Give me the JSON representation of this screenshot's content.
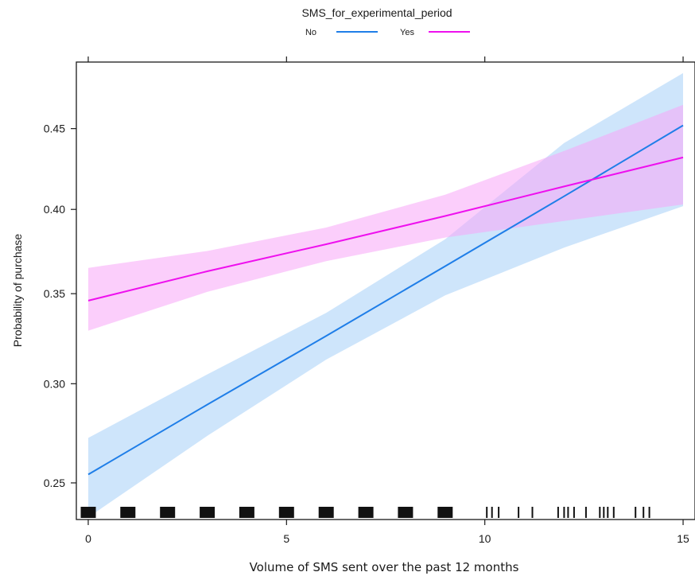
{
  "chart_data": {
    "type": "line",
    "title": "",
    "legend": {
      "title": "SMS_for_experimental_period",
      "placement": "top",
      "entries": [
        {
          "label": "No",
          "color": "#1f7ee8"
        },
        {
          "label": "Yes",
          "color": "#ee10ee"
        }
      ]
    },
    "xlabel": "Volume of SMS sent over the past 12 months",
    "ylabel": "Probability of purchase",
    "x_ticks": [
      0,
      5,
      10,
      15
    ],
    "y_ticks": [
      "0.25",
      "0.30",
      "0.35",
      "0.40",
      "0.45"
    ],
    "y_tick_values": [
      0.25,
      0.3,
      0.35,
      0.4,
      0.45
    ],
    "y_scale": "logit",
    "xlim": [
      -0.3,
      15.3
    ],
    "ylim": [
      0.233,
      0.492
    ],
    "grid": false,
    "series": [
      {
        "name": "No",
        "color": "#1f7ee8",
        "band_color": "#a6d0f7",
        "x": [
          0,
          3,
          6,
          9,
          12,
          15
        ],
        "y": [
          0.254,
          0.289,
          0.326,
          0.366,
          0.408,
          0.452
        ],
        "lower": [
          0.234,
          0.273,
          0.313,
          0.349,
          0.377,
          0.402
        ],
        "upper": [
          0.272,
          0.305,
          0.339,
          0.382,
          0.441,
          0.485
        ]
      },
      {
        "name": "Yes",
        "color": "#ee10ee",
        "band_color": "#f8a6f8",
        "x": [
          0,
          3,
          6,
          9,
          12,
          15
        ],
        "y": [
          0.346,
          0.363,
          0.379,
          0.396,
          0.414,
          0.432
        ],
        "lower": [
          0.329,
          0.351,
          0.369,
          0.383,
          0.393,
          0.403
        ],
        "upper": [
          0.365,
          0.375,
          0.389,
          0.409,
          0.436,
          0.465
        ]
      }
    ],
    "rug_x": [
      0,
      1,
      2,
      3,
      4,
      5,
      6,
      7,
      8,
      9,
      10.05,
      10.18,
      10.35,
      10.85,
      11.2,
      11.85,
      12.0,
      12.1,
      12.25,
      12.55,
      12.9,
      13.0,
      13.1,
      13.25,
      13.8,
      14.0,
      14.15
    ]
  }
}
